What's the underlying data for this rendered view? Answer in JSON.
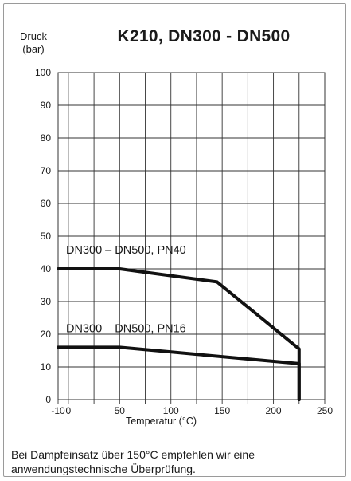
{
  "chart_data": {
    "type": "line",
    "title": "K210, DN300 - DN500",
    "ylabel_lines": [
      "Druck",
      "(bar)"
    ],
    "xlabel": "Temperatur (°C)",
    "xlim": [
      -10,
      250
    ],
    "ylim": [
      0,
      100
    ],
    "x_ticks": [
      -10,
      0,
      50,
      100,
      150,
      200,
      250
    ],
    "y_ticks": [
      0,
      10,
      20,
      30,
      40,
      50,
      60,
      70,
      80,
      90,
      100
    ],
    "grid": true,
    "series": [
      {
        "name": "DN300 – DN500, PN40",
        "x": [
          -10,
          50,
          145,
          225,
          225
        ],
        "y": [
          40,
          40,
          36,
          15.5,
          0
        ]
      },
      {
        "name": "DN300 – DN500, PN16",
        "x": [
          -10,
          50,
          225,
          225
        ],
        "y": [
          16,
          16,
          11,
          0
        ]
      }
    ]
  },
  "footnote": "Bei Dampfeinsatz über 150°C empfehlen wir eine anwendungstechnische Überprüfung."
}
